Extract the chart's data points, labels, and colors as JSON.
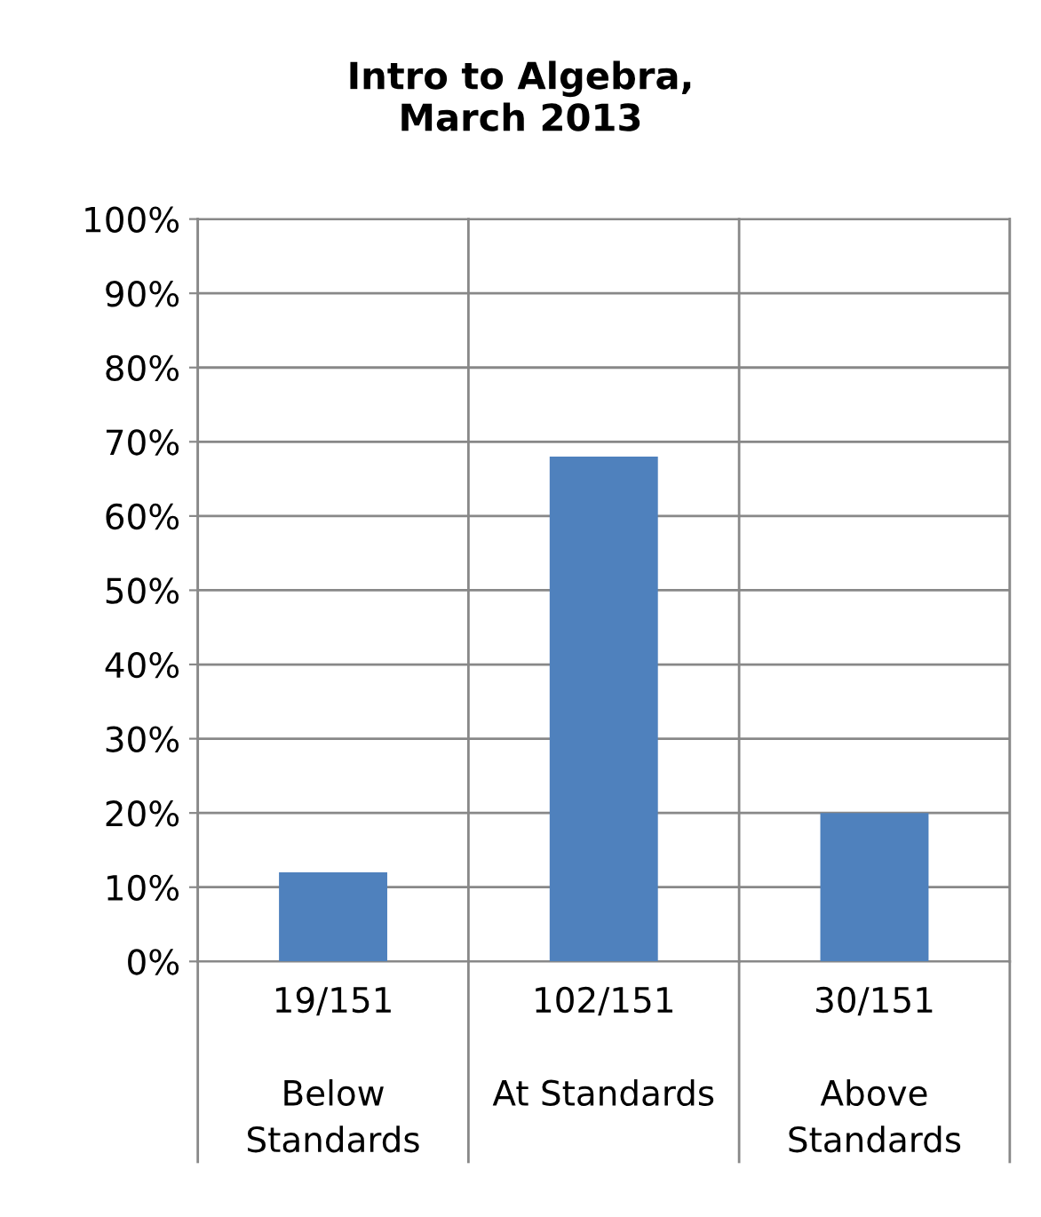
{
  "chart_data": {
    "type": "bar",
    "title": "Intro to Algebra,\nMarch 2013",
    "categories": [
      "19/151\n\nBelow\nStandards",
      "102/151\n\nAt Standards",
      "30/151\n\nAbove\nStandards"
    ],
    "values": [
      12,
      68,
      20
    ],
    "color": "#4f81bd",
    "ylim": [
      0,
      100
    ],
    "yticks": [
      {
        "value": 0,
        "label": "0%"
      },
      {
        "value": 10,
        "label": "10%"
      },
      {
        "value": 20,
        "label": "20%"
      },
      {
        "value": 30,
        "label": "30%"
      },
      {
        "value": 40,
        "label": "40%"
      },
      {
        "value": 50,
        "label": "50%"
      },
      {
        "value": 60,
        "label": "60%"
      },
      {
        "value": 70,
        "label": "70%"
      },
      {
        "value": 80,
        "label": "80%"
      },
      {
        "value": 90,
        "label": "90%"
      },
      {
        "value": 100,
        "label": "100%"
      }
    ],
    "grid": true,
    "legend": false
  }
}
